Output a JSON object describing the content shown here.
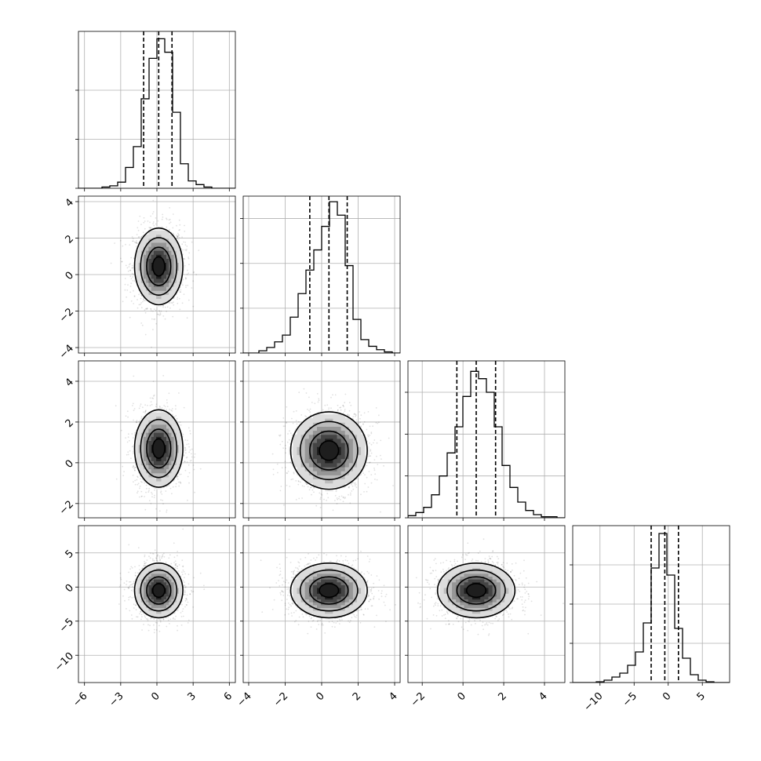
{
  "chart_data": {
    "type": "corner",
    "title": "",
    "parameter_labels": [
      "",
      "",
      "",
      ""
    ],
    "grid": true,
    "grayscale_density": true,
    "quantile_lines": "dashed",
    "axes": [
      {
        "range": [
          -6.5,
          6.5
        ],
        "ticks": [
          -6,
          -3,
          0,
          3,
          6
        ]
      },
      {
        "range": [
          -4.3,
          4.3
        ],
        "ticks": [
          -4,
          -2,
          0,
          2,
          4
        ]
      },
      {
        "range": [
          -2.7,
          5.0
        ],
        "ticks": [
          -2,
          0,
          2,
          4
        ]
      },
      {
        "range": [
          -14,
          9
        ],
        "ticks": [
          -10,
          -5,
          0,
          5
        ]
      }
    ],
    "marginals": [
      {
        "param": 0,
        "quantiles": [
          -1.1,
          0.15,
          1.25
        ],
        "hist_edges": [
          -6.5,
          -5.85,
          -5.2,
          -4.55,
          -3.9,
          -3.25,
          -2.6,
          -1.95,
          -1.3,
          -0.65,
          0.0,
          0.65,
          1.3,
          1.95,
          2.6,
          3.25,
          3.9,
          4.55,
          5.2,
          5.85,
          6.5
        ],
        "hist_counts": [
          0,
          0,
          0,
          1,
          2,
          5,
          17,
          34,
          73,
          106,
          122,
          111,
          62,
          20,
          6,
          3,
          1,
          0,
          0,
          0
        ],
        "ymax": 128,
        "yticks": [
          0,
          40,
          80
        ]
      },
      {
        "param": 1,
        "quantiles": [
          -0.65,
          0.4,
          1.4
        ],
        "hist_edges": [
          -4.3,
          -3.87,
          -3.44,
          -3.01,
          -2.58,
          -2.15,
          -1.72,
          -1.29,
          -0.86,
          -0.43,
          0.0,
          0.43,
          0.86,
          1.29,
          1.72,
          2.15,
          2.58,
          3.01,
          3.44,
          3.87,
          4.3
        ],
        "hist_counts": [
          0,
          0,
          2,
          5,
          10,
          16,
          32,
          53,
          74,
          92,
          113,
          135,
          123,
          78,
          30,
          12,
          6,
          3,
          1,
          0
        ],
        "ymax": 140,
        "yticks": [
          0,
          40,
          80,
          120
        ]
      },
      {
        "param": 2,
        "quantiles": [
          -0.3,
          0.65,
          1.6
        ],
        "hist_edges": [
          -2.7,
          -2.315,
          -1.93,
          -1.545,
          -1.16,
          -0.775,
          -0.39,
          -0.005,
          0.38,
          0.765,
          1.15,
          1.535,
          1.92,
          2.305,
          2.69,
          3.075,
          3.46,
          3.845,
          4.23,
          4.615,
          5.0
        ],
        "hist_counts": [
          2,
          5,
          10,
          22,
          40,
          62,
          87,
          116,
          140,
          133,
          120,
          87,
          50,
          29,
          15,
          7,
          3,
          1,
          1,
          0
        ],
        "ymax": 150,
        "yticks": [
          0,
          40,
          80,
          120
        ]
      },
      {
        "param": 3,
        "quantiles": [
          -2.5,
          -0.5,
          1.5
        ],
        "hist_edges": [
          -14.0,
          -12.85,
          -11.7,
          -10.55,
          -9.4,
          -8.25,
          -7.1,
          -5.95,
          -4.8,
          -3.65,
          -2.5,
          -1.35,
          -0.2,
          0.95,
          2.1,
          3.25,
          4.4,
          5.55,
          6.7,
          7.85,
          9.0
        ],
        "hist_counts": [
          0,
          0,
          0,
          1,
          3,
          7,
          12,
          22,
          39,
          76,
          146,
          190,
          137,
          69,
          31,
          10,
          3,
          1,
          0,
          0
        ],
        "ymax": 200,
        "yticks": [
          0,
          50,
          100,
          150
        ]
      }
    ],
    "joints": [
      {
        "x": 0,
        "y": 1,
        "mean": [
          0.15,
          0.45
        ],
        "sigma": [
          1.0,
          1.05
        ],
        "rho": 0.0
      },
      {
        "x": 0,
        "y": 2,
        "mean": [
          0.15,
          0.7
        ],
        "sigma": [
          1.0,
          0.95
        ],
        "rho": 0.0
      },
      {
        "x": 1,
        "y": 2,
        "mean": [
          0.4,
          0.6
        ],
        "sigma": [
          1.05,
          0.95
        ],
        "rho": 0.0
      },
      {
        "x": 0,
        "y": 3,
        "mean": [
          0.15,
          -0.5
        ],
        "sigma": [
          1.0,
          2.0
        ],
        "rho": 0.0
      },
      {
        "x": 1,
        "y": 3,
        "mean": [
          0.4,
          -0.5
        ],
        "sigma": [
          1.05,
          2.0
        ],
        "rho": 0.0
      },
      {
        "x": 2,
        "y": 3,
        "mean": [
          0.65,
          -0.5
        ],
        "sigma": [
          0.95,
          2.0
        ],
        "rho": 0.0
      }
    ],
    "contour_levels_sigma": [
      0.5,
      1.0,
      1.5,
      2.0
    ]
  }
}
